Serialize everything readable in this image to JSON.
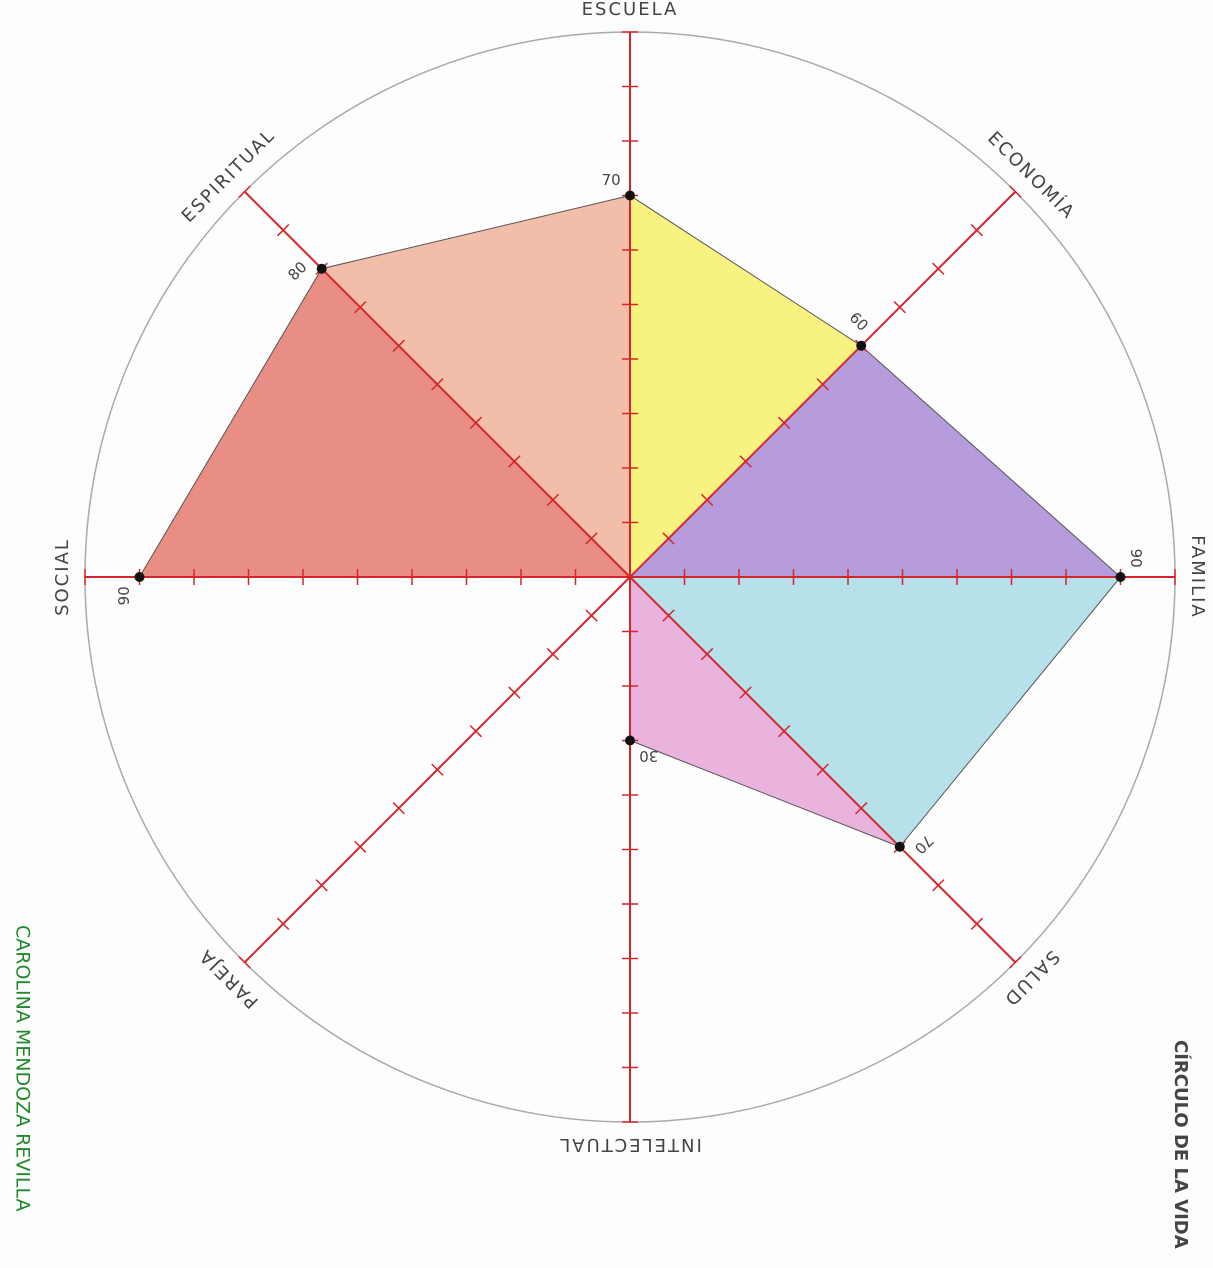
{
  "chart_data": {
    "type": "radar",
    "title": "CÍRCULO DE LA VIDA",
    "author": "CAROLINA MENDOZA REVILLA",
    "categories": [
      "ESCUELA",
      "ECONOMÍA",
      "FAMILIA",
      "SALUD",
      "INTELECTUAL",
      "PAREJA",
      "SOCIAL",
      "ESPIRITUAL"
    ],
    "values": [
      70,
      60,
      90,
      70,
      30,
      0,
      90,
      80
    ],
    "segment_colors": [
      "#f7f06a",
      "#a98bd6",
      "#a9dce8",
      "#e6a6d8",
      null,
      null,
      "#e57a6e",
      "#f0b29a"
    ],
    "axis_color": "#d4262a",
    "ylim": [
      0,
      100
    ],
    "yticks": [
      0,
      10,
      20,
      30,
      40,
      50,
      60,
      70,
      80,
      90,
      100
    ]
  }
}
